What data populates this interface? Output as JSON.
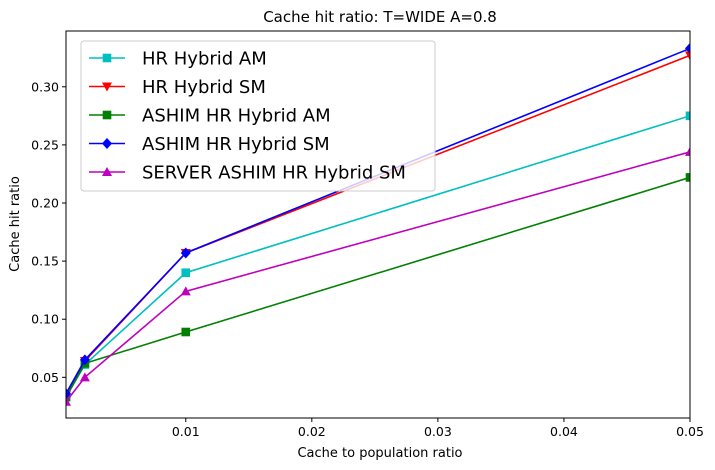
{
  "chart_data": {
    "type": "line",
    "title": "Cache hit ratio: T=WIDE A=0.8",
    "xlabel": "Cache to population ratio",
    "ylabel": "Cache hit ratio",
    "xlim": [
      0.0005,
      0.05
    ],
    "ylim": [
      0.015,
      0.348
    ],
    "xticks": [
      0.01,
      0.02,
      0.03,
      0.04,
      0.05
    ],
    "xtick_labels": [
      "0.01",
      "0.02",
      "0.03",
      "0.04",
      "0.05"
    ],
    "yticks": [
      0.05,
      0.1,
      0.15,
      0.2,
      0.25,
      0.3
    ],
    "ytick_labels": [
      "0.05",
      "0.10",
      "0.15",
      "0.20",
      "0.25",
      "0.30"
    ],
    "grid": false,
    "legend_position": "top-left",
    "x": [
      0.0005,
      0.002,
      0.01,
      0.05
    ],
    "series": [
      {
        "name": "HR Hybrid AM",
        "color": "#00bfbf",
        "marker": "square",
        "values": [
          0.033,
          0.061,
          0.14,
          0.275
        ]
      },
      {
        "name": "HR Hybrid SM",
        "color": "#ff0000",
        "marker": "triangle-down",
        "values": [
          0.035,
          0.064,
          0.157,
          0.327
        ]
      },
      {
        "name": "ASHIM HR Hybrid AM",
        "color": "#008000",
        "marker": "square",
        "values": [
          0.033,
          0.062,
          0.089,
          0.222
        ]
      },
      {
        "name": "ASHIM HR Hybrid SM",
        "color": "#0000ff",
        "marker": "diamond",
        "values": [
          0.036,
          0.065,
          0.157,
          0.333
        ]
      },
      {
        "name": "SERVER ASHIM HR Hybrid SM",
        "color": "#bf00bf",
        "marker": "triangle-up",
        "values": [
          0.029,
          0.05,
          0.124,
          0.244
        ]
      }
    ]
  }
}
